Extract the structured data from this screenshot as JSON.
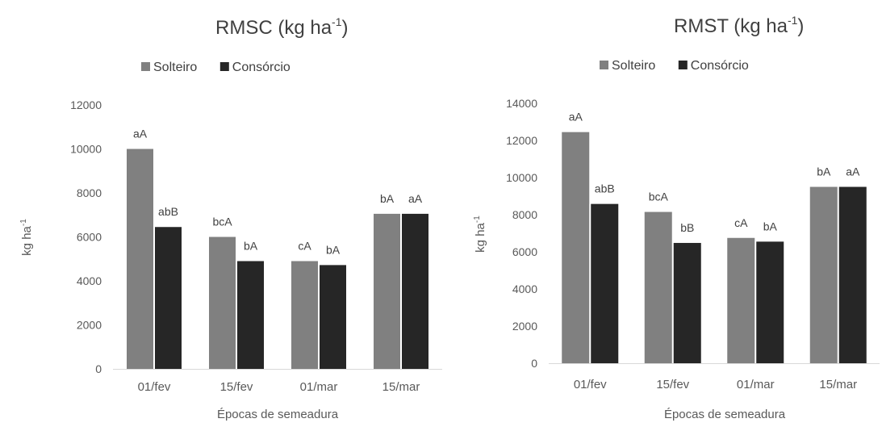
{
  "chart_data": [
    {
      "type": "bar",
      "title": "RMSC (kg ha",
      "title_sup": "-1",
      "title_end": ")",
      "ylabel": "kg ha",
      "ylabel_sup": "-1",
      "xlabel": "Épocas de semeadura",
      "categories": [
        "01/fev",
        "15/fev",
        "01/mar",
        "15/mar"
      ],
      "ylim": [
        0,
        12000
      ],
      "yticks": [
        0,
        2000,
        4000,
        6000,
        8000,
        10000,
        12000
      ],
      "grid": false,
      "legend": "top",
      "series": [
        {
          "name": "Solteiro",
          "color": "#808080",
          "values": [
            10000,
            6000,
            4900,
            7050
          ],
          "labels": [
            "aA",
            "bcA",
            "cA",
            "bA"
          ]
        },
        {
          "name": "Consórcio",
          "color": "#262626",
          "values": [
            6450,
            4900,
            4720,
            7050
          ],
          "labels": [
            "abB",
            "bA",
            "bA",
            "aA"
          ]
        }
      ]
    },
    {
      "type": "bar",
      "title": "RMST (kg ha",
      "title_sup": "-1",
      "title_end": ")",
      "ylabel": "kg ha",
      "ylabel_sup": "-1",
      "xlabel": "Épocas de semeadura",
      "categories": [
        "01/fev",
        "15/fev",
        "01/mar",
        "15/mar"
      ],
      "ylim": [
        0,
        14000
      ],
      "yticks": [
        0,
        2000,
        4000,
        6000,
        8000,
        10000,
        12000,
        14000
      ],
      "grid": false,
      "legend": "top",
      "series": [
        {
          "name": "Solteiro",
          "color": "#808080",
          "values": [
            12450,
            8150,
            6750,
            9500
          ],
          "labels": [
            "aA",
            "bcA",
            "cA",
            "bA"
          ]
        },
        {
          "name": "Consórcio",
          "color": "#262626",
          "values": [
            8580,
            6480,
            6550,
            9500
          ],
          "labels": [
            "abB",
            "bB",
            "bA",
            "aA"
          ]
        }
      ]
    }
  ]
}
